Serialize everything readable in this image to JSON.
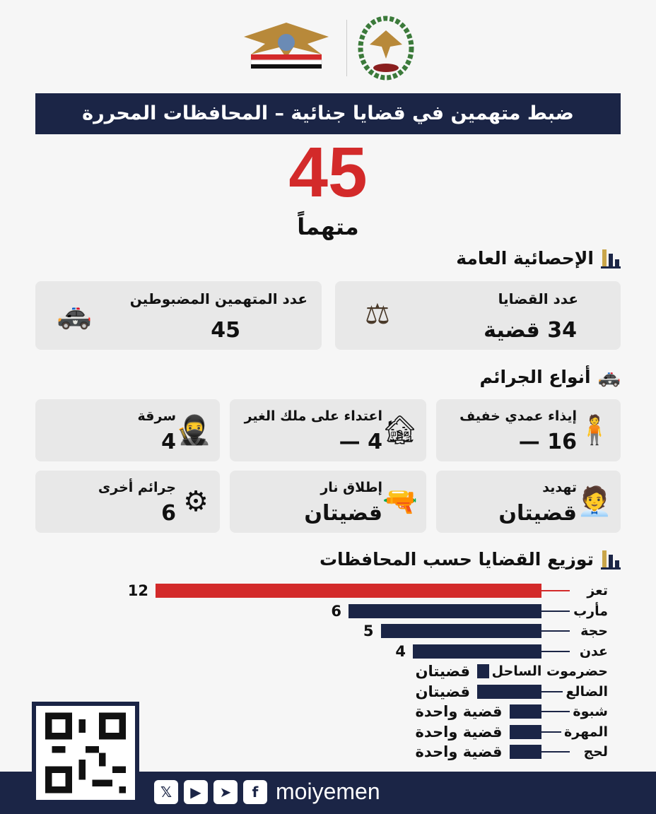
{
  "header": {
    "title": "ضبط متهمين في قضايا جنائية – المحافظات المحررة",
    "total": "45",
    "total_unit": "متهماً"
  },
  "general": {
    "heading": "الإحصائية العامة",
    "cards": [
      {
        "label": "عدد القضايا",
        "value": "34 قضية",
        "icon": "scales-icon"
      },
      {
        "label": "عدد المتهمين المضبوطين",
        "value": "45",
        "icon": "police-car-icon"
      }
    ]
  },
  "crimes": {
    "heading": "أنواع الجرائم",
    "items": [
      {
        "label": "إيذاء عمدي خفيف",
        "value": "16 —",
        "icon": "injured-person-icon"
      },
      {
        "label": "اعتداء على ملك الغير",
        "value": "4 —",
        "icon": "damaged-house-icon"
      },
      {
        "label": "سرقة",
        "value": "4",
        "icon": "thief-icon"
      },
      {
        "label": "تهديد",
        "value": "قضيتان",
        "icon": "threatened-person-icon"
      },
      {
        "label": "إطلاق نار",
        "value": "قضيتان",
        "icon": "pistol-icon"
      },
      {
        "label": "جرائم أخرى",
        "value": "6",
        "icon": "gear-icon"
      }
    ]
  },
  "chart_data": {
    "type": "bar",
    "title": "توزيع القضايا حسب المحافظات",
    "orientation": "horizontal",
    "categories": [
      "تعز",
      "مأرب",
      "حجة",
      "عدن",
      "حضرموت الساحل",
      "الضالع",
      "شبوة",
      "المهرة",
      "لحج"
    ],
    "values": [
      12,
      6,
      5,
      4,
      2,
      2,
      1,
      1,
      1
    ],
    "value_labels": [
      "12",
      "6",
      "5",
      "4",
      "قضيتان",
      "قضيتان",
      "قضية واحدة",
      "قضية واحدة",
      "قضية واحدة"
    ],
    "colors": {
      "highlight": "#d32a2a",
      "default": "#1b2546"
    }
  },
  "footer": {
    "handle": "moiyemen",
    "social": [
      "x-icon",
      "youtube-icon",
      "telegram-icon",
      "facebook-icon"
    ]
  }
}
